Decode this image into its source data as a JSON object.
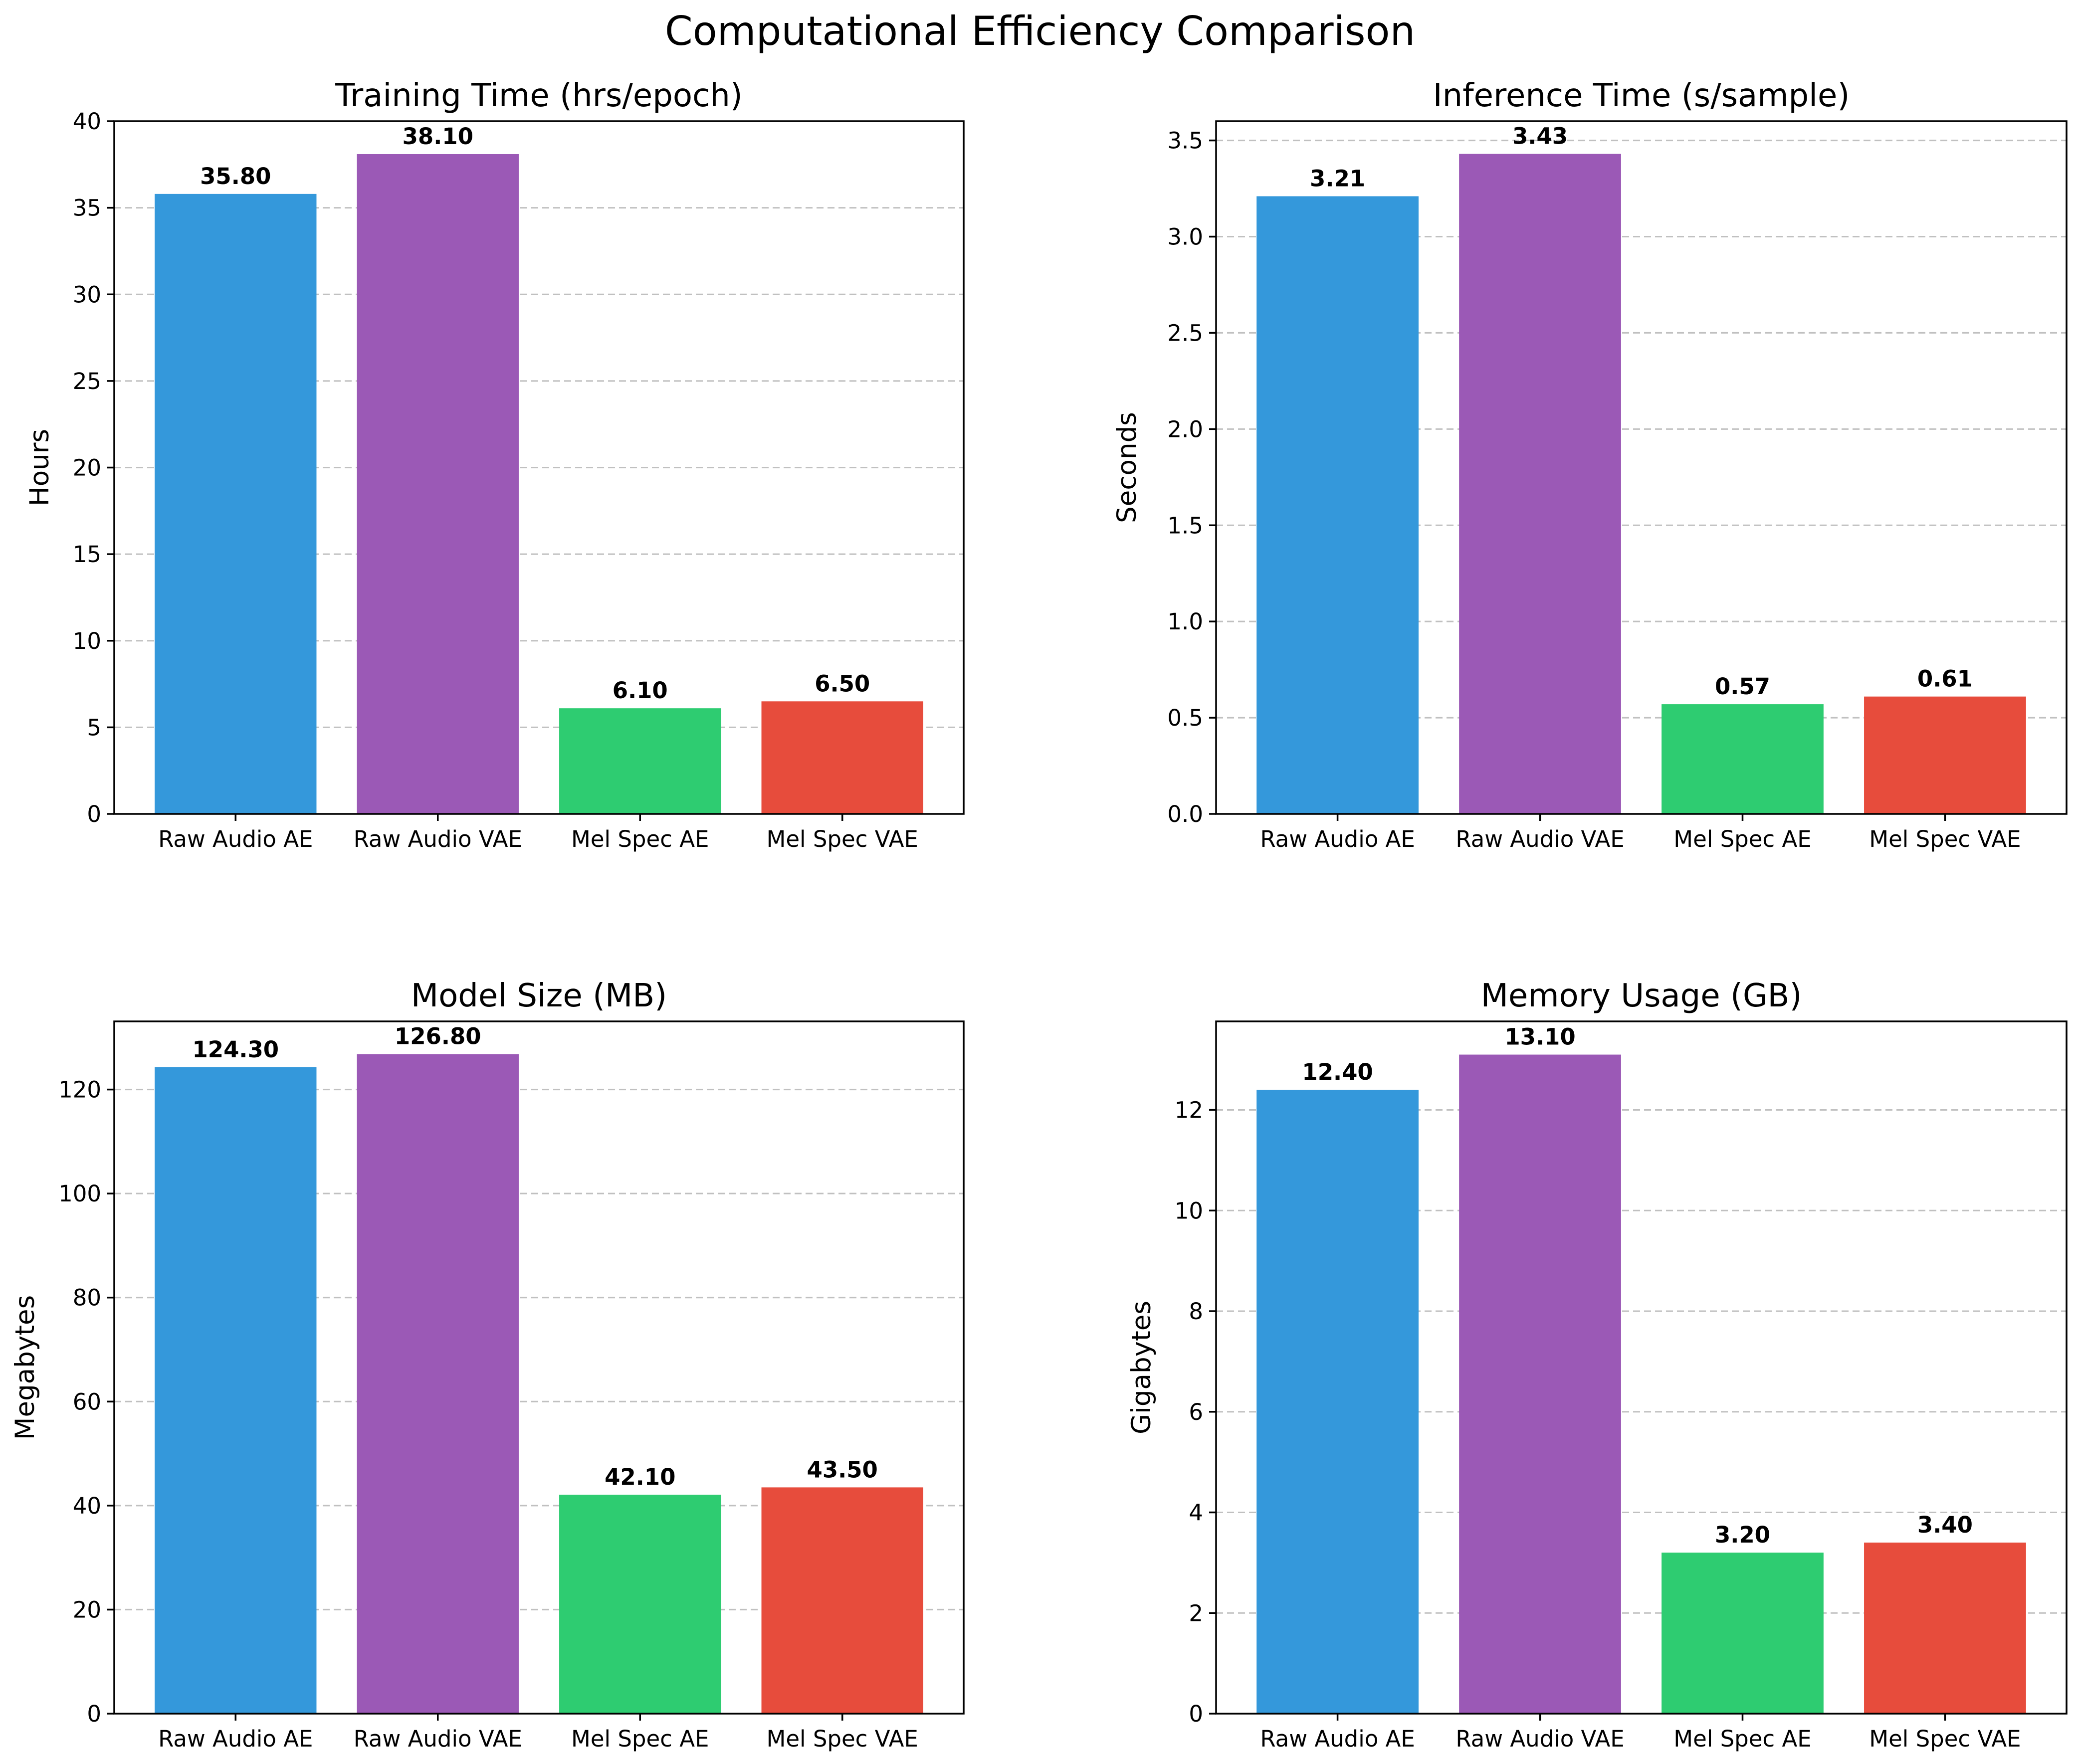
{
  "figure": {
    "suptitle": "Computational Efficiency Comparison"
  },
  "chart_data": [
    {
      "type": "bar",
      "title": "Training Time (hrs/epoch)",
      "xlabel": "",
      "ylabel": "Hours",
      "categories": [
        "Raw Audio AE",
        "Raw Audio VAE",
        "Mel Spec AE",
        "Mel Spec VAE"
      ],
      "values": [
        35.8,
        38.1,
        6.1,
        6.5
      ],
      "value_labels": [
        "35.80",
        "38.10",
        "6.10",
        "6.50"
      ],
      "colors": [
        "#3498db",
        "#9b59b6",
        "#2ecc71",
        "#e74c3c"
      ],
      "ylim": [
        0,
        40
      ],
      "yticks": [
        0,
        5,
        10,
        15,
        20,
        25,
        30,
        35,
        40
      ],
      "ytick_labels": [
        "0",
        "5",
        "10",
        "15",
        "20",
        "25",
        "30",
        "35",
        "40"
      ],
      "grid": "y-dashed"
    },
    {
      "type": "bar",
      "title": "Inference Time (s/sample)",
      "xlabel": "",
      "ylabel": "Seconds",
      "categories": [
        "Raw Audio AE",
        "Raw Audio VAE",
        "Mel Spec AE",
        "Mel Spec VAE"
      ],
      "values": [
        3.21,
        3.43,
        0.57,
        0.61
      ],
      "value_labels": [
        "3.21",
        "3.43",
        "0.57",
        "0.61"
      ],
      "colors": [
        "#3498db",
        "#9b59b6",
        "#2ecc71",
        "#e74c3c"
      ],
      "ylim": [
        0,
        3.6
      ],
      "yticks": [
        0,
        0.5,
        1.0,
        1.5,
        2.0,
        2.5,
        3.0,
        3.5
      ],
      "ytick_labels": [
        "0.0",
        "0.5",
        "1.0",
        "1.5",
        "2.0",
        "2.5",
        "3.0",
        "3.5"
      ],
      "grid": "y-dashed"
    },
    {
      "type": "bar",
      "title": "Model Size (MB)",
      "xlabel": "",
      "ylabel": "Megabytes",
      "categories": [
        "Raw Audio AE",
        "Raw Audio VAE",
        "Mel Spec AE",
        "Mel Spec VAE"
      ],
      "values": [
        124.3,
        126.8,
        42.1,
        43.5
      ],
      "value_labels": [
        "124.30",
        "126.80",
        "42.10",
        "43.50"
      ],
      "colors": [
        "#3498db",
        "#9b59b6",
        "#2ecc71",
        "#e74c3c"
      ],
      "ylim": [
        0,
        133.1
      ],
      "yticks": [
        0,
        20,
        40,
        60,
        80,
        100,
        120
      ],
      "ytick_labels": [
        "0",
        "20",
        "40",
        "60",
        "80",
        "100",
        "120"
      ],
      "grid": "y-dashed"
    },
    {
      "type": "bar",
      "title": "Memory Usage (GB)",
      "xlabel": "",
      "ylabel": "Gigabytes",
      "categories": [
        "Raw Audio AE",
        "Raw Audio VAE",
        "Mel Spec AE",
        "Mel Spec VAE"
      ],
      "values": [
        12.4,
        13.1,
        3.2,
        3.4
      ],
      "value_labels": [
        "12.40",
        "13.10",
        "3.20",
        "3.40"
      ],
      "colors": [
        "#3498db",
        "#9b59b6",
        "#2ecc71",
        "#e74c3c"
      ],
      "ylim": [
        0,
        13.76
      ],
      "yticks": [
        0,
        2,
        4,
        6,
        8,
        10,
        12
      ],
      "ytick_labels": [
        "0",
        "2",
        "4",
        "6",
        "8",
        "10",
        "12"
      ],
      "grid": "y-dashed"
    }
  ]
}
